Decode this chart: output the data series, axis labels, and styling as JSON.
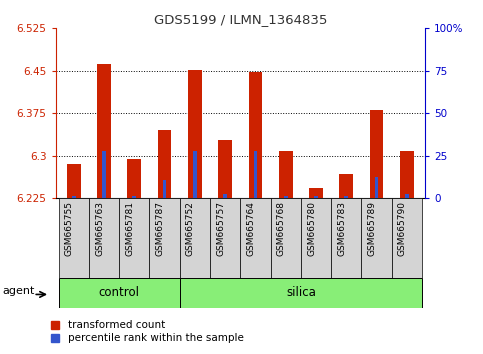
{
  "title": "GDS5199 / ILMN_1364835",
  "samples": [
    "GSM665755",
    "GSM665763",
    "GSM665781",
    "GSM665787",
    "GSM665752",
    "GSM665757",
    "GSM665764",
    "GSM665768",
    "GSM665780",
    "GSM665783",
    "GSM665789",
    "GSM665790"
  ],
  "red_values": [
    6.285,
    6.462,
    6.295,
    6.345,
    6.452,
    6.328,
    6.447,
    6.308,
    6.243,
    6.268,
    6.38,
    6.308
  ],
  "blue_values": [
    6.2285,
    6.308,
    6.2285,
    6.258,
    6.308,
    6.232,
    6.308,
    6.2285,
    6.2285,
    6.2285,
    6.262,
    6.232
  ],
  "base": 6.225,
  "ylim_left": [
    6.225,
    6.525
  ],
  "ylim_right": [
    0,
    100
  ],
  "yticks_left": [
    6.225,
    6.3,
    6.375,
    6.45,
    6.525
  ],
  "ytick_labels_left": [
    "6.225",
    "6.3",
    "6.375",
    "6.45",
    "6.525"
  ],
  "yticks_right": [
    0,
    25,
    50,
    75,
    100
  ],
  "ytick_labels_right": [
    "0",
    "25",
    "50",
    "75",
    "100%"
  ],
  "red_bar_width": 0.45,
  "blue_bar_width": 0.12,
  "red_color": "#cc2200",
  "blue_color": "#3355cc",
  "control_color": "#88ee77",
  "silica_color": "#88ee77",
  "agent_label": "agent",
  "control_label": "control",
  "silica_label": "silica",
  "legend_red": "transformed count",
  "legend_blue": "percentile rank within the sample",
  "bg_plot": "#ffffff",
  "tick_bg": "#d4d4d4",
  "title_color": "#333333",
  "left_axis_color": "#cc2200",
  "right_axis_color": "#0000cc",
  "n_control": 4,
  "n_silica": 8
}
